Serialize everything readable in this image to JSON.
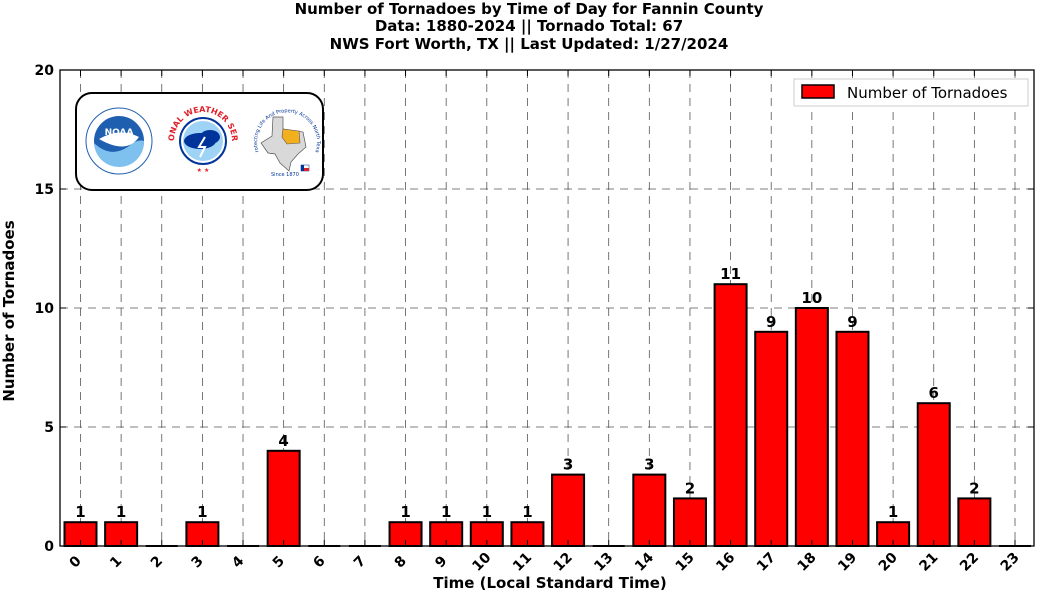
{
  "chart_data": {
    "type": "bar",
    "title_lines": [
      "Number of Tornadoes by Time of Day for Fannin County",
      "Data: 1880-2024 || Tornado Total: 67",
      "NWS Fort Worth, TX || Last Updated: 1/27/2024"
    ],
    "xlabel": "Time (Local Standard Time)",
    "ylabel": "Number of Tornadoes",
    "categories": [
      "0",
      "1",
      "2",
      "3",
      "4",
      "5",
      "6",
      "7",
      "8",
      "9",
      "10",
      "11",
      "12",
      "13",
      "14",
      "15",
      "16",
      "17",
      "18",
      "19",
      "20",
      "21",
      "22",
      "23"
    ],
    "series": [
      {
        "name": "Number of Tornadoes",
        "values": [
          1,
          1,
          0,
          1,
          0,
          4,
          0,
          0,
          1,
          1,
          1,
          1,
          3,
          0,
          3,
          2,
          11,
          9,
          10,
          9,
          1,
          6,
          2,
          0
        ]
      }
    ],
    "ylim": [
      0,
      20
    ],
    "yticks": [
      0,
      5,
      10,
      15,
      20
    ],
    "grid": true,
    "legend_position": "top-right",
    "bar_color": "#ff0000",
    "data_labels_on_zero": false
  },
  "logos": {
    "noaa_text": "NOAA",
    "nws_ring_text": "NATIONAL WEATHER SERVICE",
    "texas_ring_text": "Protecting Life And Property Across North Texas",
    "since_text": "Since 1870"
  },
  "colors": {
    "bar": "#ff0000",
    "noaa_blue": "#1f5fb0",
    "nws_red": "#e0202a",
    "nws_blue": "#00349a",
    "texas_orange": "#f2b01e"
  }
}
